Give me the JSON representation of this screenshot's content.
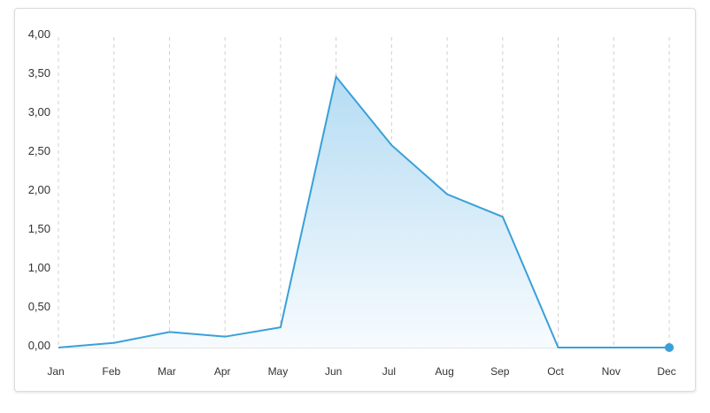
{
  "chart_data": {
    "type": "area",
    "title": "",
    "xlabel": "",
    "ylabel": "",
    "categories": [
      "Jan",
      "Feb",
      "Mar",
      "Apr",
      "May",
      "Jun",
      "Jul",
      "Aug",
      "Sep",
      "Oct",
      "Nov",
      "Dec"
    ],
    "series": [
      {
        "values": [
          0.0,
          0.06,
          0.2,
          0.14,
          0.26,
          3.48,
          2.6,
          1.97,
          1.68,
          0.0,
          0.0,
          0.0
        ]
      }
    ],
    "ylim": [
      0,
      4
    ],
    "y_ticks": [
      "0,00",
      "0,50",
      "1,00",
      "1,50",
      "2,00",
      "2,50",
      "3,00",
      "3,50",
      "4,00"
    ],
    "grid": "vertical dashed",
    "colors": {
      "line": "#3aa0d8",
      "fill_top": "#b5dcf3",
      "fill_bottom": "#f7fbfe",
      "grid": "#d0d0d0",
      "axis": "#c8c8c8",
      "marker": "#3aa0d8"
    },
    "highlighted_point": "Dec"
  }
}
